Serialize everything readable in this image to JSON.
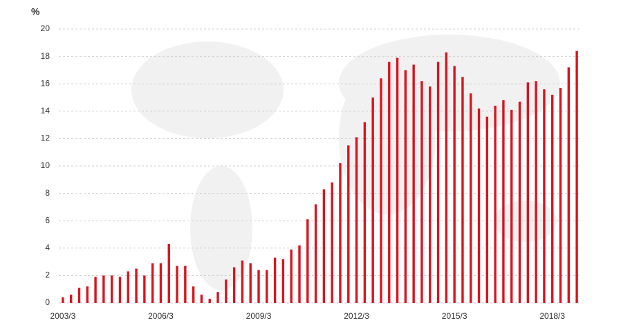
{
  "chart_data": {
    "type": "bar",
    "y_label": "%",
    "categories": [
      "2003/3",
      null,
      null,
      null,
      null,
      null,
      null,
      null,
      null,
      null,
      null,
      null,
      "2006/3",
      null,
      null,
      null,
      null,
      null,
      null,
      null,
      null,
      null,
      null,
      null,
      "2009/3",
      null,
      null,
      null,
      null,
      null,
      null,
      null,
      null,
      null,
      null,
      null,
      "2012/3",
      null,
      null,
      null,
      null,
      null,
      null,
      null,
      null,
      null,
      null,
      null,
      "2015/3",
      null,
      null,
      null,
      null,
      null,
      null,
      null,
      null,
      null,
      null,
      null,
      "2018/3",
      null,
      null,
      null
    ],
    "values": [
      0.4,
      0.6,
      1.1,
      1.2,
      1.9,
      2.0,
      2.0,
      1.9,
      2.3,
      2.5,
      2.0,
      2.9,
      2.9,
      4.3,
      2.7,
      2.7,
      1.2,
      0.6,
      0.3,
      0.8,
      1.7,
      2.6,
      3.1,
      2.9,
      2.4,
      2.4,
      3.3,
      3.2,
      3.9,
      4.2,
      6.1,
      7.2,
      8.3,
      8.8,
      10.2,
      11.5,
      12.1,
      13.2,
      15.0,
      16.4,
      17.6,
      17.9,
      17.0,
      17.4,
      16.2,
      15.8,
      17.6,
      18.3,
      17.3,
      16.5,
      15.3,
      14.2,
      13.6,
      14.4,
      14.8,
      14.1,
      14.7,
      16.1,
      16.2,
      15.6,
      15.2,
      15.7,
      17.2,
      18.4
    ],
    "color": "#d9141e",
    "ylim": [
      0,
      20
    ],
    "yticks": [
      0,
      2,
      4,
      6,
      8,
      10,
      12,
      14,
      16,
      18,
      20
    ],
    "grid": true
  }
}
